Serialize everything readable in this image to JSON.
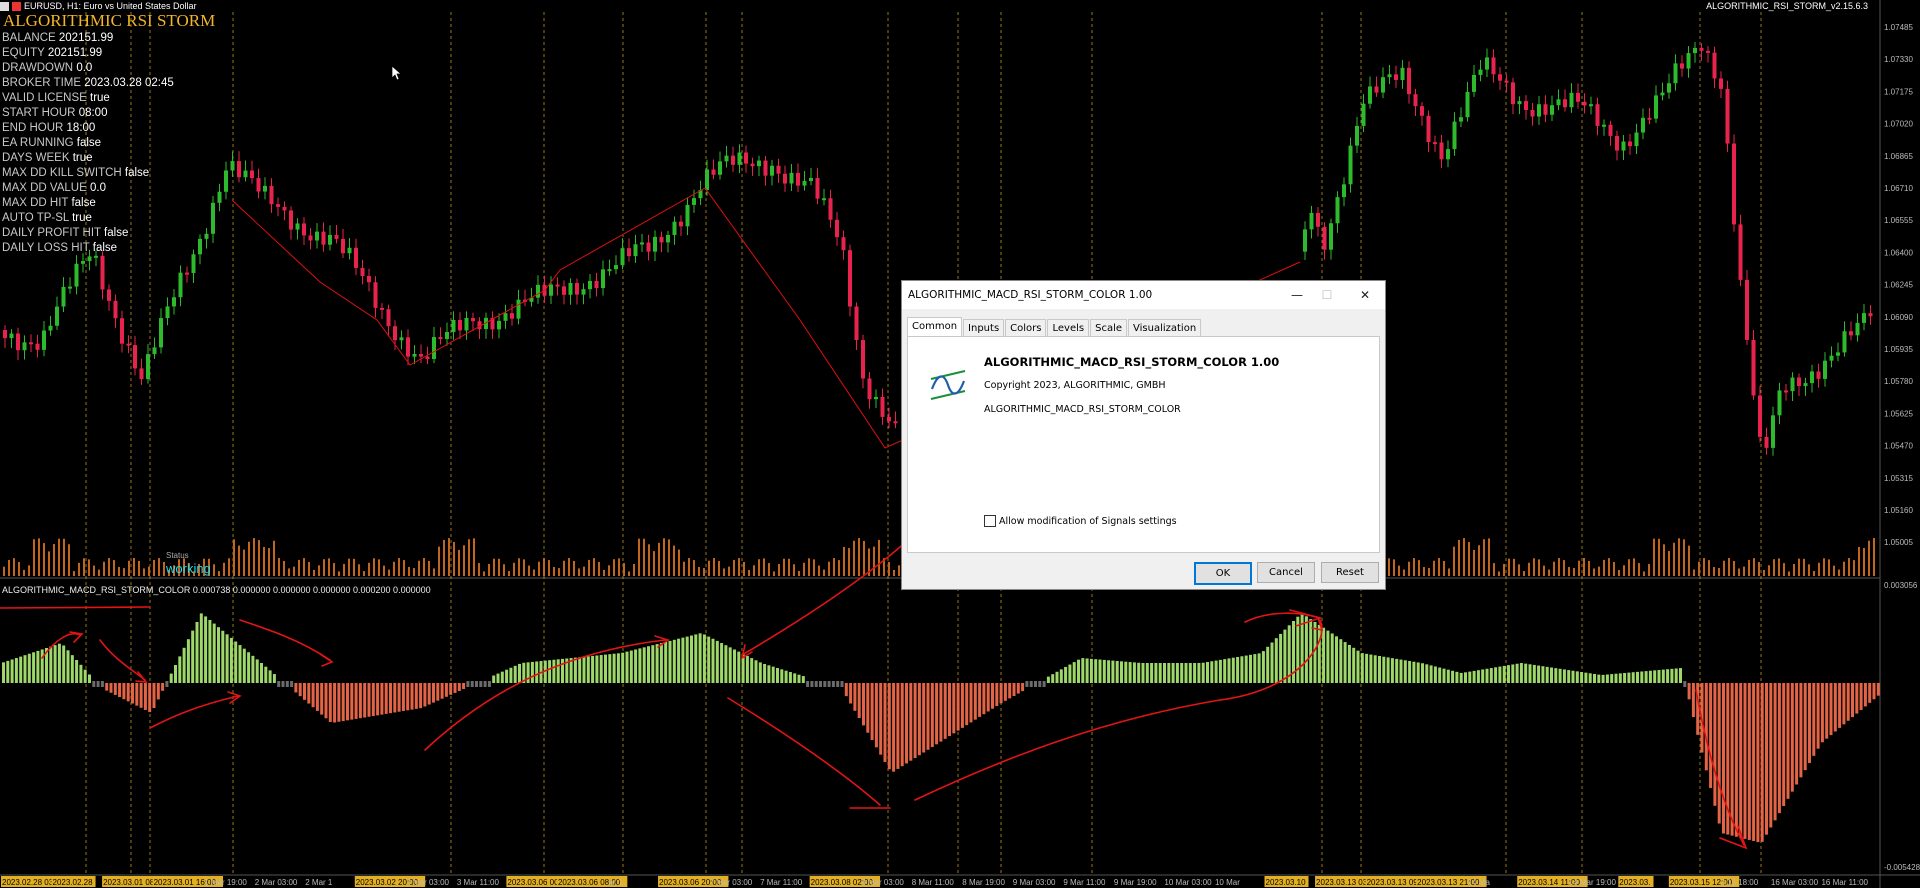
{
  "window": {
    "symbol_title": "EURUSD, H1:  Euro vs United States Dollar",
    "ea_label": "ALGORITHMIC_RSI_STORM_v2.15.6.3"
  },
  "panel": {
    "title": "ALGORITHMIC RSI STORM",
    "stats": [
      {
        "k": "BALANCE",
        "v": "202151.99"
      },
      {
        "k": "EQUITY",
        "v": "202151.99"
      },
      {
        "k": "DRAWDOWN",
        "v": "0.0"
      },
      {
        "k": "BROKER TIME",
        "v": "2023.03.28 02:45"
      },
      {
        "k": "VALID LICENSE",
        "v": "true"
      },
      {
        "k": "START HOUR",
        "v": "08:00"
      },
      {
        "k": "END HOUR",
        "v": "18:00"
      },
      {
        "k": "EA RUNNING",
        "v": "false"
      },
      {
        "k": "DAYS WEEK",
        "v": "true"
      },
      {
        "k": "MAX DD KILL SWITCH",
        "v": "false"
      },
      {
        "k": "MAX DD VALUE",
        "v": "0.0"
      },
      {
        "k": "MAX DD HIT",
        "v": "false"
      },
      {
        "k": "AUTO TP-SL",
        "v": "true"
      },
      {
        "k": "DAILY PROFIT HIT",
        "v": "false"
      },
      {
        "k": "DAILY LOSS HIT",
        "v": "false"
      }
    ],
    "status_label": "Status",
    "status_value": "working"
  },
  "indicator_label": "ALGORITHMIC_MACD_RSI_STORM_COLOR 0.000738 0.000000 0.000000 0.000000 0.000200 0.000000",
  "price_axis": [
    "1.07485",
    "1.07330",
    "1.07175",
    "1.07020",
    "1.06865",
    "1.06710",
    "1.06555",
    "1.06400",
    "1.06245",
    "1.06090",
    "1.05935",
    "1.05780",
    "1.05625",
    "1.05470",
    "1.05315",
    "1.05160",
    "1.05005"
  ],
  "ind_axis": [
    "0.003056",
    "-0.005428"
  ],
  "time_labels": [
    "2023.02.28 03:00",
    "2023.02.28",
    "2023.03.01 08:00",
    "2023.03.01 16:00",
    "1 Mar 19:00",
    "2 Mar 03:00",
    "2 Mar 1",
    "2023.03.02 20:00",
    "3 Mar 03:00",
    "3 Mar 11:00",
    "2023.03.06 00:00",
    "2023.03.06 08:00",
    "ar 1",
    "2023.03.06 20:00",
    "7 Mar 03:00",
    "7 Mar 11:00",
    "2023.03.08 02:00",
    "8 Mar 03:00",
    "8 Mar 11:00",
    "8 Mar 19:00",
    "9 Mar 03:00",
    "9 Mar 11:00",
    "9 Mar 19:00",
    "10 Mar 03:00",
    "10 Mar",
    "2023.03.10",
    "2023.03.13 03:00",
    "2023.03.13 09:00",
    "2023.03.13 21:00",
    "14 Ma",
    "2023.03.14 11:00",
    "14 Mar 19:00",
    "2023.03.",
    "2023.03.15 12:00",
    "3.15 18:00",
    "16 Mar 03:00",
    "16 Mar 11:00"
  ],
  "colors": {
    "bull": "#2dbb2d",
    "bear": "#e8234d",
    "volume": "#c2651d",
    "grid_v": "#e3b021",
    "hist_bull": "#9fd86a",
    "hist_bear": "#f06a4a",
    "hist_neutral": "#6b6b6b",
    "annot": "#e11515",
    "axis_text": "#bbbbbb"
  },
  "dialog": {
    "title": "ALGORITHMIC_MACD_RSI_STORM_COLOR 1.00",
    "tabs": [
      "Common",
      "Inputs",
      "Colors",
      "Levels",
      "Scale",
      "Visualization"
    ],
    "active_tab": "Common",
    "program_name": "ALGORITHMIC_MACD_RSI_STORM_COLOR 1.00",
    "copyright": "Copyright 2023, ALGORITHMIC, GMBH",
    "file_name": "ALGORITHMIC_MACD_RSI_STORM_COLOR",
    "checkbox_label": "Allow modification of Signals settings",
    "checkbox_checked": false,
    "buttons": {
      "ok": "OK",
      "cancel": "Cancel",
      "reset": "Reset"
    }
  }
}
